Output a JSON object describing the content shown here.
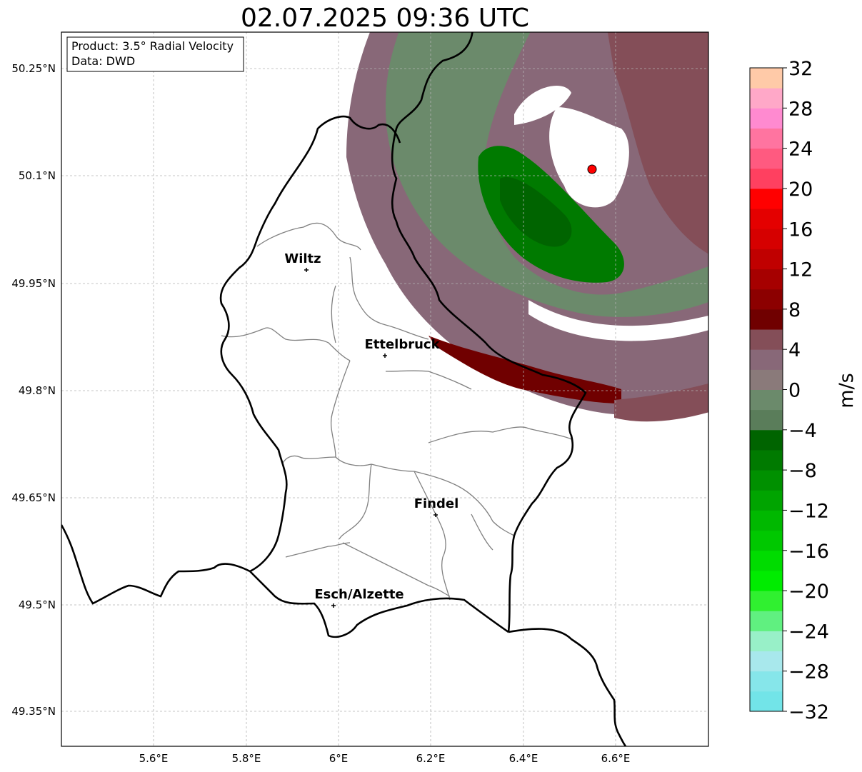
{
  "title": "02.07.2025 09:36 UTC",
  "info_box": {
    "product": "Product: 3.5° Radial Velocity",
    "source": "Data: DWD"
  },
  "axes": {
    "lon_ticks": [
      "5.6°E",
      "5.8°E",
      "6°E",
      "6.2°E",
      "6.4°E",
      "6.6°E"
    ],
    "lat_ticks": [
      "50.25°N",
      "50.1°N",
      "49.95°N",
      "49.8°N",
      "49.65°N",
      "49.5°N",
      "49.35°N"
    ],
    "grid": true
  },
  "cities": [
    {
      "name": "Wiltz"
    },
    {
      "name": "Ettelbruck"
    },
    {
      "name": "Findel"
    },
    {
      "name": "Esch/Alzette"
    }
  ],
  "colorbar": {
    "unit": "m/s",
    "min": -32,
    "max": 32,
    "ticks": [
      "32",
      "28",
      "24",
      "20",
      "16",
      "12",
      "8",
      "4",
      "0",
      "−4",
      "−8",
      "−12",
      "−16",
      "−20",
      "−24",
      "−28",
      "−32"
    ],
    "colors_bottom_to_top": [
      "#72e4e8",
      "#86e6ea",
      "#a8e8ec",
      "#98f0c8",
      "#60f080",
      "#30f030",
      "#00ec00",
      "#00dc00",
      "#00c800",
      "#00b800",
      "#00a400",
      "#009000",
      "#007a00",
      "#006400",
      "#5a7d5a",
      "#6b8a6b",
      "#8a7a7a",
      "#886878",
      "#844e58",
      "#700000",
      "#8c0000",
      "#a60000",
      "#c00000",
      "#d60000",
      "#e40000",
      "#ff0000",
      "#ff4060",
      "#ff5a80",
      "#ff74a0",
      "#ff8ad0",
      "#ffa8c8",
      "#ffcaa8"
    ]
  },
  "map_colors": {
    "border_national": "#000000",
    "border_canton": "#808080",
    "radar_site": "#ff0000"
  }
}
